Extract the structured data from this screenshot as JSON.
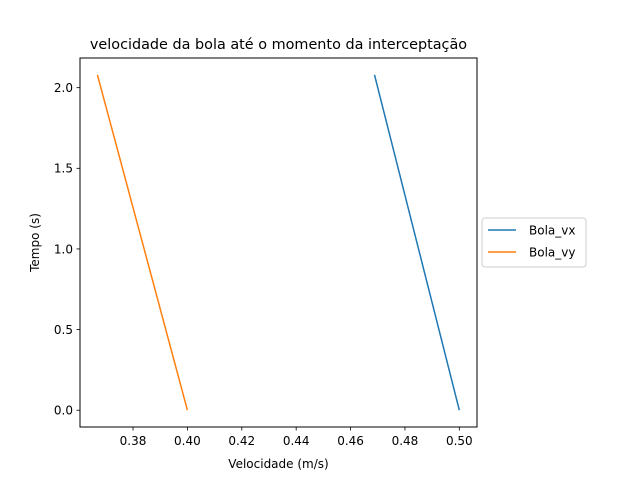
{
  "chart_data": {
    "type": "line",
    "title": "velocidade da bola até o momento da interceptação",
    "xlabel": "Velocidade (m/s)",
    "ylabel": "Tempo (s)",
    "xlim": [
      0.3605,
      0.5065
    ],
    "ylim": [
      -0.104,
      2.184
    ],
    "xticks": [
      0.38,
      0.4,
      0.42,
      0.44,
      0.46,
      0.48,
      0.5
    ],
    "xtick_labels": [
      "0.38",
      "0.40",
      "0.42",
      "0.44",
      "0.46",
      "0.48",
      "0.50"
    ],
    "yticks": [
      0.0,
      0.5,
      1.0,
      1.5,
      2.0
    ],
    "ytick_labels": [
      "0.0",
      "0.5",
      "1.0",
      "1.5",
      "2.0"
    ],
    "grid": false,
    "legend_position": "outside-right",
    "series": [
      {
        "name": "Bola_vx",
        "color": "#1f77b4",
        "x": [
          0.5,
          0.4688
        ],
        "y": [
          0.0,
          2.08
        ]
      },
      {
        "name": "Bola_vy",
        "color": "#ff7f0e",
        "x": [
          0.4,
          0.3669
        ],
        "y": [
          0.0,
          2.08
        ]
      }
    ]
  }
}
